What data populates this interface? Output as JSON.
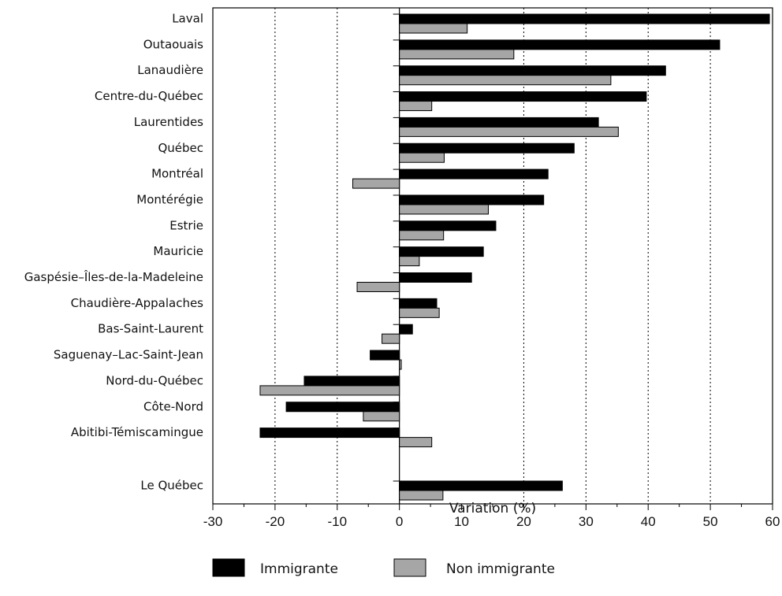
{
  "chart_data": {
    "type": "bar",
    "orientation": "horizontal",
    "categories": [
      "Laval",
      "Outaouais",
      "Lanaudière",
      "Centre-du-Québec",
      "Laurentides",
      "Québec",
      "Montréal",
      "Montérégie",
      "Estrie",
      "Mauricie",
      "Gaspésie–Îles-de-la-Madeleine",
      "Chaudière-Appalaches",
      "Bas-Saint-Laurent",
      "Saguenay–Lac-Saint-Jean",
      "Nord-du-Québec",
      "Côte-Nord",
      "Abitibi-Témiscamingue",
      "Le Québec"
    ],
    "series": [
      {
        "name": "Immigrante",
        "color": "#000000",
        "values": [
          59.5,
          51.5,
          42.8,
          39.7,
          32.0,
          28.1,
          23.9,
          23.2,
          15.5,
          13.5,
          11.6,
          6.0,
          2.1,
          -4.7,
          -15.3,
          -18.2,
          -22.4,
          26.2
        ]
      },
      {
        "name": "Non immigrante",
        "color": "#a6a6a6",
        "values": [
          10.9,
          18.4,
          34.0,
          5.2,
          35.2,
          7.2,
          -7.5,
          14.3,
          7.1,
          3.2,
          -6.8,
          6.4,
          -2.8,
          0.3,
          -22.4,
          -5.8,
          5.2,
          7.0
        ]
      }
    ],
    "xlabel": "Variation (%)",
    "xlim": [
      -30,
      60
    ],
    "xticks": [
      "-30",
      "-20",
      "-10",
      "0",
      "10",
      "20",
      "30",
      "40",
      "50",
      "60"
    ],
    "grid": "vertical dotted at -20,-10,20,30,40,50",
    "legend_position": "bottom"
  }
}
